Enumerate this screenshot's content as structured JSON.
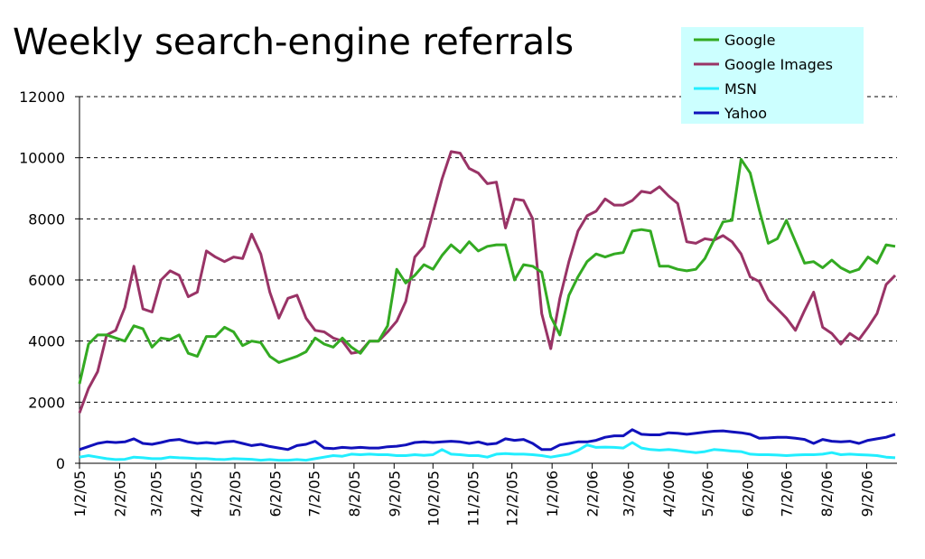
{
  "chart_data": {
    "type": "line",
    "title": "Weekly search-engine referrals",
    "x": [
      "1/2/05",
      "1/9/05",
      "1/16/05",
      "1/23/05",
      "1/30/05",
      "2/6/05",
      "2/13/05",
      "2/20/05",
      "2/27/05",
      "3/6/05",
      "3/13/05",
      "3/20/05",
      "3/27/05",
      "4/3/05",
      "4/10/05",
      "4/17/05",
      "4/24/05",
      "5/1/05",
      "5/8/05",
      "5/15/05",
      "5/22/05",
      "5/29/05",
      "6/5/05",
      "6/12/05",
      "6/19/05",
      "6/26/05",
      "7/3/05",
      "7/10/05",
      "7/17/05",
      "7/24/05",
      "7/31/05",
      "8/7/05",
      "8/14/05",
      "8/21/05",
      "8/28/05",
      "9/4/05",
      "9/11/05",
      "9/18/05",
      "9/25/05",
      "10/2/05",
      "10/9/05",
      "10/16/05",
      "10/23/05",
      "10/30/05",
      "11/6/05",
      "11/13/05",
      "11/20/05",
      "11/27/05",
      "12/4/05",
      "12/11/05",
      "12/18/05",
      "12/25/05",
      "1/1/06",
      "1/8/06",
      "1/15/06",
      "1/22/06",
      "1/29/06",
      "2/5/06",
      "2/12/06",
      "2/19/06",
      "2/26/06",
      "3/5/06",
      "3/12/06",
      "3/19/06",
      "3/26/06",
      "4/2/06",
      "4/9/06",
      "4/16/06",
      "4/23/06",
      "4/30/06",
      "5/7/06",
      "5/14/06",
      "5/21/06",
      "5/28/06",
      "6/4/06",
      "6/11/06",
      "6/18/06",
      "6/25/06",
      "7/2/06",
      "7/9/06",
      "7/16/06",
      "7/23/06",
      "7/30/06",
      "8/6/06",
      "8/13/06",
      "8/20/06",
      "8/27/06",
      "9/3/06",
      "9/10/06",
      "9/17/06",
      "9/24/06"
    ],
    "xlim": [
      "1/2/05",
      "9/24/06"
    ],
    "xticks": [
      "1/2/05",
      "2/2/05",
      "3/2/05",
      "4/2/05",
      "5/2/05",
      "6/2/05",
      "7/2/05",
      "8/2/05",
      "9/2/05",
      "10/2/05",
      "11/2/05",
      "12/2/05",
      "1/2/06",
      "2/2/06",
      "3/2/06",
      "4/2/06",
      "5/2/06",
      "6/2/06",
      "7/2/06",
      "8/2/06",
      "9/2/06"
    ],
    "ylim": [
      0,
      12000
    ],
    "yticks": [
      0,
      2000,
      4000,
      6000,
      8000,
      10000,
      12000
    ],
    "grid": true,
    "legend": "upper right",
    "series": [
      {
        "name": "Google",
        "color": "#33aa22",
        "values": [
          2600,
          3900,
          4200,
          4200,
          4100,
          4000,
          4500,
          4400,
          3800,
          4100,
          4050,
          4200,
          3600,
          3500,
          4150,
          4150,
          4450,
          4300,
          3850,
          4000,
          3950,
          3500,
          3300,
          3400,
          3500,
          3650,
          4100,
          3900,
          3800,
          4100,
          3800,
          3600,
          4000,
          4000,
          4500,
          6350,
          5900,
          6150,
          6500,
          6350,
          6800,
          7150,
          6900,
          7250,
          6950,
          7100,
          7150,
          7150,
          6000,
          6500,
          6450,
          6250,
          4800,
          4200,
          5500,
          6100,
          6600,
          6850,
          6750,
          6850,
          6900,
          7600,
          7650,
          7600,
          6450,
          6450,
          6350,
          6300,
          6350,
          6700,
          7300,
          7900,
          7950,
          9950,
          9500,
          8300,
          7200,
          7350,
          7950,
          7250,
          6550,
          6600,
          6400,
          6650,
          6400,
          6250,
          6350,
          6750,
          6550,
          7150,
          7100
        ]
      },
      {
        "name": "Google Images",
        "color": "#993366",
        "values": [
          1650,
          2450,
          3000,
          4200,
          4350,
          5100,
          6450,
          5050,
          4950,
          6000,
          6300,
          6150,
          5450,
          5600,
          6950,
          6750,
          6600,
          6750,
          6700,
          7500,
          6850,
          5600,
          4750,
          5400,
          5500,
          4750,
          4350,
          4300,
          4100,
          4000,
          3600,
          3650,
          4000,
          4000,
          4300,
          4650,
          5300,
          6750,
          7100,
          8200,
          9300,
          10200,
          10150,
          9650,
          9500,
          9150,
          9200,
          7700,
          8650,
          8600,
          8000,
          4900,
          3750,
          5400,
          6600,
          7600,
          8100,
          8250,
          8650,
          8450,
          8450,
          8600,
          8900,
          8850,
          9050,
          8750,
          8500,
          7250,
          7200,
          7350,
          7300,
          7450,
          7250,
          6850,
          6100,
          5950,
          5350,
          5050,
          4750,
          4350,
          5000,
          5600,
          4450,
          4250,
          3900,
          4250,
          4050,
          4450,
          4900,
          5850,
          6150
        ]
      },
      {
        "name": "MSN",
        "color": "#22eeff",
        "values": [
          200,
          250,
          200,
          150,
          120,
          130,
          200,
          180,
          150,
          150,
          200,
          180,
          170,
          150,
          150,
          130,
          120,
          150,
          140,
          130,
          100,
          120,
          100,
          100,
          120,
          100,
          150,
          200,
          250,
          230,
          300,
          280,
          300,
          280,
          280,
          250,
          250,
          280,
          260,
          280,
          450,
          300,
          280,
          250,
          250,
          200,
          300,
          320,
          300,
          300,
          280,
          250,
          200,
          250,
          300,
          420,
          600,
          520,
          530,
          520,
          500,
          680,
          500,
          450,
          430,
          450,
          420,
          380,
          350,
          380,
          450,
          430,
          400,
          380,
          300,
          280,
          280,
          270,
          250,
          270,
          280,
          280,
          300,
          350,
          280,
          300,
          280,
          270,
          250,
          200,
          180
        ]
      },
      {
        "name": "Yahoo",
        "color": "#1111bb",
        "values": [
          450,
          550,
          650,
          700,
          680,
          700,
          800,
          650,
          620,
          680,
          750,
          780,
          700,
          650,
          680,
          650,
          700,
          720,
          650,
          580,
          620,
          550,
          500,
          450,
          580,
          620,
          720,
          500,
          480,
          520,
          500,
          520,
          500,
          500,
          540,
          560,
          600,
          680,
          700,
          680,
          700,
          720,
          700,
          650,
          700,
          620,
          650,
          800,
          750,
          780,
          650,
          450,
          450,
          600,
          650,
          700,
          700,
          750,
          850,
          900,
          900,
          1100,
          950,
          930,
          930,
          1000,
          980,
          950,
          980,
          1020,
          1050,
          1060,
          1030,
          1000,
          950,
          820,
          830,
          850,
          850,
          820,
          780,
          650,
          780,
          720,
          700,
          720,
          650,
          750,
          800,
          850,
          950
        ]
      }
    ]
  }
}
